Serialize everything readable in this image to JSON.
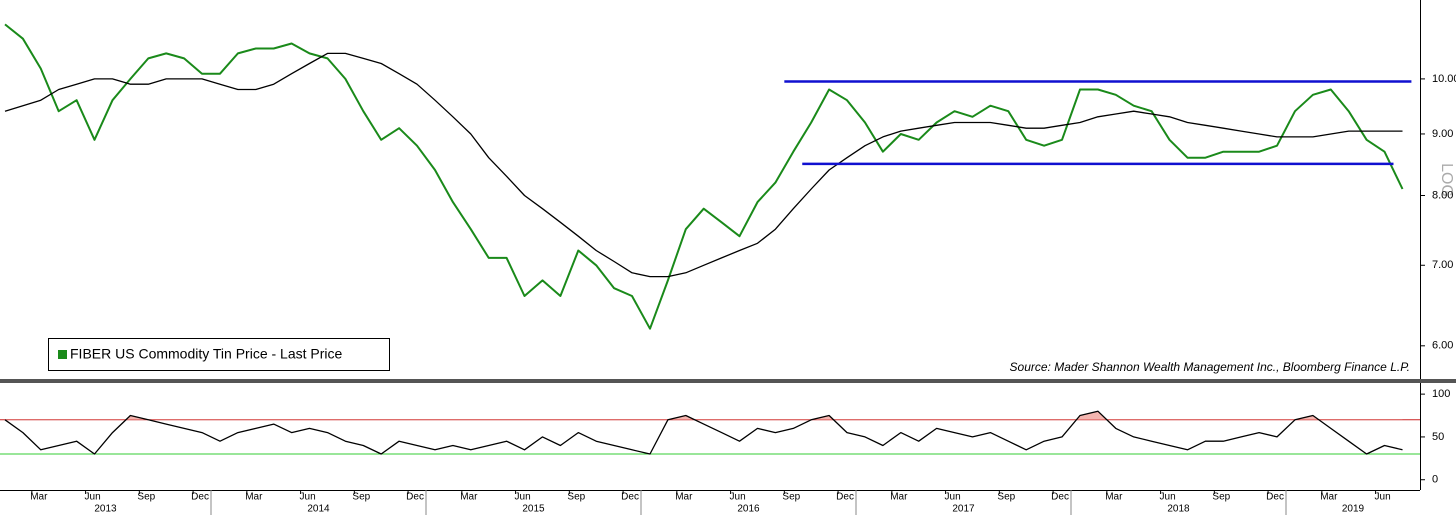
{
  "chart_data": [
    {
      "type": "line",
      "log_scale": true,
      "x": [
        "2013-01",
        "2013-02",
        "2013-03",
        "2013-04",
        "2013-05",
        "2013-06",
        "2013-07",
        "2013-08",
        "2013-09",
        "2013-10",
        "2013-11",
        "2013-12",
        "2014-01",
        "2014-02",
        "2014-03",
        "2014-04",
        "2014-05",
        "2014-06",
        "2014-07",
        "2014-08",
        "2014-09",
        "2014-10",
        "2014-11",
        "2014-12",
        "2015-01",
        "2015-02",
        "2015-03",
        "2015-04",
        "2015-05",
        "2015-06",
        "2015-07",
        "2015-08",
        "2015-09",
        "2015-10",
        "2015-11",
        "2015-12",
        "2016-01",
        "2016-02",
        "2016-03",
        "2016-04",
        "2016-05",
        "2016-06",
        "2016-07",
        "2016-08",
        "2016-09",
        "2016-10",
        "2016-11",
        "2016-12",
        "2017-01",
        "2017-02",
        "2017-03",
        "2017-04",
        "2017-05",
        "2017-06",
        "2017-07",
        "2017-08",
        "2017-09",
        "2017-10",
        "2017-11",
        "2017-12",
        "2018-01",
        "2018-02",
        "2018-03",
        "2018-04",
        "2018-05",
        "2018-06",
        "2018-07",
        "2018-08",
        "2018-09",
        "2018-10",
        "2018-11",
        "2018-12",
        "2019-01",
        "2019-02",
        "2019-03",
        "2019-04",
        "2019-05",
        "2019-06",
        "2019-07"
      ],
      "series": [
        {
          "name": "FIBER US Commodity Tin Price - Last Price",
          "color": "#1a8a1a",
          "values": [
            11.1,
            10.8,
            10.2,
            9.4,
            9.6,
            8.9,
            9.6,
            10.0,
            10.4,
            10.5,
            10.4,
            10.1,
            10.1,
            10.5,
            10.6,
            10.6,
            10.7,
            10.5,
            10.4,
            10.0,
            9.4,
            8.9,
            9.1,
            8.8,
            8.4,
            7.9,
            7.5,
            7.1,
            7.1,
            6.6,
            6.8,
            6.6,
            7.2,
            7.0,
            6.7,
            6.6,
            6.2,
            6.8,
            7.5,
            7.8,
            7.6,
            7.4,
            7.9,
            8.2,
            8.7,
            9.2,
            9.8,
            9.6,
            9.2,
            8.7,
            9.0,
            8.9,
            9.2,
            9.4,
            9.3,
            9.5,
            9.4,
            8.9,
            8.8,
            8.9,
            9.8,
            9.8,
            9.7,
            9.5,
            9.4,
            8.9,
            8.6,
            8.6,
            8.7,
            8.7,
            8.7,
            8.8,
            9.4,
            9.7,
            9.8,
            9.4,
            8.9,
            8.7,
            8.1
          ]
        },
        {
          "color": "#000000",
          "values": [
            9.4,
            9.5,
            9.6,
            9.8,
            9.9,
            10.0,
            10.0,
            9.9,
            9.9,
            10.0,
            10.0,
            10.0,
            9.9,
            9.8,
            9.8,
            9.9,
            10.1,
            10.3,
            10.5,
            10.5,
            10.4,
            10.3,
            10.1,
            9.9,
            9.6,
            9.3,
            9.0,
            8.6,
            8.3,
            8.0,
            7.8,
            7.6,
            7.4,
            7.2,
            7.05,
            6.9,
            6.85,
            6.85,
            6.9,
            7.0,
            7.1,
            7.2,
            7.3,
            7.5,
            7.8,
            8.1,
            8.4,
            8.6,
            8.8,
            8.95,
            9.05,
            9.1,
            9.15,
            9.2,
            9.2,
            9.2,
            9.15,
            9.1,
            9.1,
            9.15,
            9.2,
            9.3,
            9.35,
            9.4,
            9.35,
            9.3,
            9.2,
            9.15,
            9.1,
            9.05,
            9.0,
            8.95,
            8.95,
            8.95,
            9.0,
            9.05,
            9.05,
            9.05,
            9.05
          ]
        }
      ],
      "ylim": [
        5.62,
        11.63
      ],
      "yticks": [
        {
          "value": 6,
          "label": "6.00"
        },
        {
          "value": 7,
          "label": "7.00"
        },
        {
          "value": 8,
          "label": "8.00"
        },
        {
          "value": 9,
          "label": "9.00"
        },
        {
          "value": 10,
          "label": "10.00"
        }
      ],
      "y_axis_label": "LOG",
      "channel_lines": [
        {
          "value": 9.95,
          "start": "2016-09",
          "end": "2019-07",
          "color": "#1010d0"
        },
        {
          "value": 8.5,
          "start": "2016-10",
          "end": "2019-06",
          "color": "#1010d0"
        }
      ],
      "source": "Source: Mader Shannon Wealth Management Inc., Bloomberg Finance L.P.",
      "legend": "bottom-left"
    },
    {
      "type": "line",
      "x": [
        "2013-01",
        "2013-02",
        "2013-03",
        "2013-04",
        "2013-05",
        "2013-06",
        "2013-07",
        "2013-08",
        "2013-09",
        "2013-10",
        "2013-11",
        "2013-12",
        "2014-01",
        "2014-02",
        "2014-03",
        "2014-04",
        "2014-05",
        "2014-06",
        "2014-07",
        "2014-08",
        "2014-09",
        "2014-10",
        "2014-11",
        "2014-12",
        "2015-01",
        "2015-02",
        "2015-03",
        "2015-04",
        "2015-05",
        "2015-06",
        "2015-07",
        "2015-08",
        "2015-09",
        "2015-10",
        "2015-11",
        "2015-12",
        "2016-01",
        "2016-02",
        "2016-03",
        "2016-04",
        "2016-05",
        "2016-06",
        "2016-07",
        "2016-08",
        "2016-09",
        "2016-10",
        "2016-11",
        "2016-12",
        "2017-01",
        "2017-02",
        "2017-03",
        "2017-04",
        "2017-05",
        "2017-06",
        "2017-07",
        "2017-08",
        "2017-09",
        "2017-10",
        "2017-11",
        "2017-12",
        "2018-01",
        "2018-02",
        "2018-03",
        "2018-04",
        "2018-05",
        "2018-06",
        "2018-07",
        "2018-08",
        "2018-09",
        "2018-10",
        "2018-11",
        "2018-12",
        "2019-01",
        "2019-02",
        "2019-03",
        "2019-04",
        "2019-05",
        "2019-06",
        "2019-07"
      ],
      "series": [
        {
          "color": "#000000",
          "values": [
            70,
            55,
            35,
            40,
            45,
            30,
            55,
            75,
            70,
            65,
            60,
            55,
            45,
            55,
            60,
            65,
            55,
            60,
            55,
            45,
            40,
            30,
            45,
            40,
            35,
            40,
            35,
            40,
            45,
            35,
            50,
            40,
            55,
            45,
            40,
            35,
            30,
            70,
            75,
            65,
            55,
            45,
            60,
            55,
            60,
            70,
            75,
            55,
            50,
            40,
            55,
            45,
            60,
            55,
            50,
            55,
            45,
            35,
            45,
            50,
            75,
            80,
            60,
            50,
            45,
            40,
            35,
            45,
            45,
            50,
            55,
            50,
            70,
            75,
            60,
            45,
            30,
            40,
            35
          ]
        }
      ],
      "ylim": [
        -12,
        113
      ],
      "yticks": [
        0,
        50,
        100
      ],
      "reference_lines": [
        {
          "value": 70,
          "color": "#cc2222"
        },
        {
          "value": 30,
          "color": "#33cc33"
        }
      ],
      "overbought_fill": "#f4b6b0",
      "xticks": [
        {
          "value": "2013-03",
          "label": "Mar"
        },
        {
          "value": "2013-06",
          "label": "Jun"
        },
        {
          "value": "2013-09",
          "label": "Sep"
        },
        {
          "value": "2013-12",
          "label": "Dec"
        },
        {
          "value": "2014-03",
          "label": "Mar"
        },
        {
          "value": "2014-06",
          "label": "Jun"
        },
        {
          "value": "2014-09",
          "label": "Sep"
        },
        {
          "value": "2014-12",
          "label": "Dec"
        },
        {
          "value": "2015-03",
          "label": "Mar"
        },
        {
          "value": "2015-06",
          "label": "Jun"
        },
        {
          "value": "2015-09",
          "label": "Sep"
        },
        {
          "value": "2015-12",
          "label": "Dec"
        },
        {
          "value": "2016-03",
          "label": "Mar"
        },
        {
          "value": "2016-06",
          "label": "Jun"
        },
        {
          "value": "2016-09",
          "label": "Sep"
        },
        {
          "value": "2016-12",
          "label": "Dec"
        },
        {
          "value": "2017-03",
          "label": "Mar"
        },
        {
          "value": "2017-06",
          "label": "Jun"
        },
        {
          "value": "2017-09",
          "label": "Sep"
        },
        {
          "value": "2017-12",
          "label": "Dec"
        },
        {
          "value": "2018-03",
          "label": "Mar"
        },
        {
          "value": "2018-06",
          "label": "Jun"
        },
        {
          "value": "2018-09",
          "label": "Sep"
        },
        {
          "value": "2018-12",
          "label": "Dec"
        },
        {
          "value": "2019-03",
          "label": "Mar"
        },
        {
          "value": "2019-06",
          "label": "Jun"
        }
      ],
      "years": [
        "2013",
        "2014",
        "2015",
        "2016",
        "2017",
        "2018",
        "2019"
      ]
    }
  ]
}
